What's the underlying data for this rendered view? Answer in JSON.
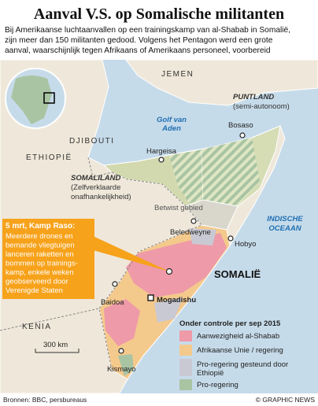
{
  "header": {
    "title": "Aanval V.S. op Somalische militanten",
    "intro": [
      "Bij Amerikaanse luchtaanvallen op een trainingskamp van al-Shabab in Somalië,",
      "zijn meer dan 150 militanten gedood. Volgens het Pentagon werd een grote",
      "aanval, waarschijnlijk tegen Afrikaans of Amerikaans personeel, voorbereid"
    ]
  },
  "map": {
    "countries": [
      "JEMEN",
      "DJIBOUTI",
      "ETHIOPIË",
      "KENIA",
      "SOMALIË"
    ],
    "seas": {
      "gulf": [
        "Golf van",
        "Aden"
      ],
      "ocean": [
        "INDISCHE",
        "OCEAAN"
      ]
    },
    "regions": {
      "puntland": {
        "name": "PUNTLAND",
        "note": "(semi-autonoom)"
      },
      "somaliland": {
        "name": "SOMALILAND",
        "note": [
          "(Zelfverklaarde",
          "onafhankelijkheid)"
        ]
      },
      "disputed": "Betwist gebied"
    },
    "cities": [
      "Bosaso",
      "Hargeisa",
      "Beledweyne",
      "Hobyo",
      "Baidoa",
      "Mogadishu",
      "Kismayo"
    ],
    "scale": "300 km"
  },
  "callout": {
    "title": "5 mrt, Kamp Raso:",
    "lines": [
      "Meerdere drones en",
      "bemande vliegtuigen",
      "lanceren raketten en",
      "bommen op trainings-",
      "kamp, enkele weken",
      "geobserveerd door",
      "Verenigde Staten"
    ]
  },
  "legend": {
    "title": "Onder controle per sep 2015",
    "items": [
      {
        "label": [
          "Aanwezigheid al-Shabab"
        ],
        "color": "#ee9aa9"
      },
      {
        "label": [
          "Afrikaanse Unie / regering"
        ],
        "color": "#f4c98c"
      },
      {
        "label": [
          "Pro-regering gesteund door",
          "Ethiopië"
        ],
        "color": "#c9c9d3"
      },
      {
        "label": [
          "Pro-regering"
        ],
        "color": "#a9c4a2"
      }
    ]
  },
  "footer": {
    "source": "Bronnen: BBC, persbureaus",
    "credit": "© GRAPHIC NEWS"
  }
}
